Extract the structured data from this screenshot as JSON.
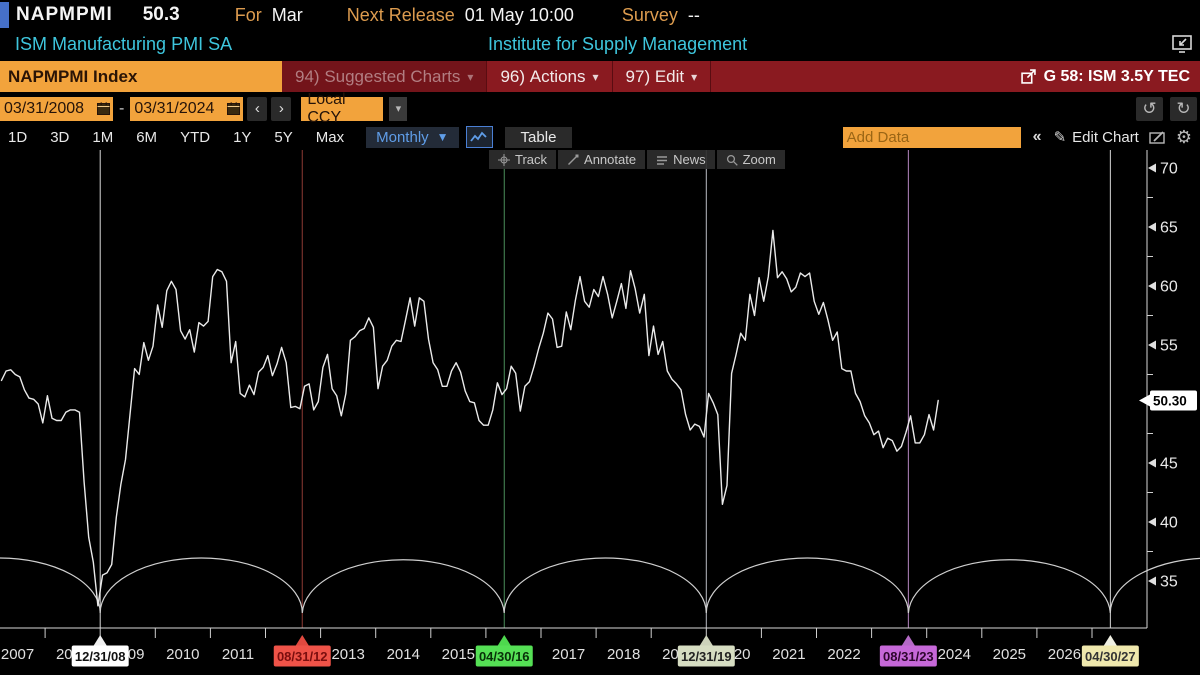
{
  "header": {
    "ticker": "NAPMPMI",
    "value": "50.3",
    "for_label": "For",
    "for_value": "Mar",
    "next_release_label": "Next Release",
    "next_release_value": "01 May 10:00",
    "survey_label": "Survey",
    "survey_value": "--",
    "security_name": "ISM Manufacturing PMI SA",
    "source": "Institute for Supply Management"
  },
  "menubar": {
    "security": "NAPMPMI Index",
    "suggested_num": "94)",
    "suggested_label": "Suggested Charts",
    "actions_num": "96)",
    "actions_label": "Actions",
    "edit_num": "97)",
    "edit_label": "Edit",
    "view_tag": "G 58: ISM 3.5Y TEC"
  },
  "daterange": {
    "start": "03/31/2008",
    "end": "03/31/2024",
    "currency": "Local CCY"
  },
  "toolbar": {
    "periods": [
      "1D",
      "3D",
      "1M",
      "6M",
      "YTD",
      "1Y",
      "5Y",
      "Max"
    ],
    "frequency": "Monthly",
    "table_label": "Table",
    "add_data_placeholder": "Add Data",
    "edit_chart_label": "Edit Chart"
  },
  "icons": {
    "caret_down": "▾",
    "caret_solid": "▼",
    "chevron_left": "‹",
    "chevron_right": "›",
    "double_chevron_left": "«",
    "undo": "↺",
    "redo": "↻",
    "pencil": "✎",
    "gear": "⚙",
    "dash": "-"
  },
  "chart_toolbar": [
    "Track",
    "Annotate",
    "News",
    "Zoom"
  ],
  "chart_data": {
    "type": "line",
    "series_name": "NAPMPMI Index",
    "title": "ISM Manufacturing PMI SA",
    "frequency": "monthly",
    "start": "2007-03",
    "end": "2024-03",
    "start_year_frac": 2007.2083,
    "last_price_label": "50.30",
    "last_value": 50.3,
    "yticks": [
      35,
      40,
      45,
      50,
      55,
      60,
      65,
      70
    ],
    "ylim_visible": [
      33,
      71
    ],
    "grid": false,
    "line_color": "#eaeaea",
    "arc_color": "#cfcfcf",
    "x_year_labels": [
      2007,
      2008,
      2009,
      2010,
      2011,
      2012,
      2013,
      2014,
      2015,
      2016,
      2017,
      2018,
      2019,
      2020,
      2021,
      2022,
      2023,
      2024,
      2025,
      2026
    ],
    "cycle_events": [
      {
        "label": "12/31/08",
        "t": 2009.0,
        "badge_bg": "#ffffff",
        "badge_text": "#111111",
        "line": "#d9d9d9",
        "tri": "#f0f0f0"
      },
      {
        "label": "08/31/12",
        "t": 2012.667,
        "badge_bg": "#ef5348",
        "badge_text": "#7a0e0e",
        "line": "#8e3a34",
        "tri": "#e0493f"
      },
      {
        "label": "04/30/16",
        "t": 2016.333,
        "badge_bg": "#55e055",
        "badge_text": "#083008",
        "line": "#4a8f5a",
        "tri": "#4ed84e"
      },
      {
        "label": "12/31/19",
        "t": 2020.0,
        "badge_bg": "#d6ddc2",
        "badge_text": "#222222",
        "line": "#b9bcc4",
        "tri": "#ccd2ba"
      },
      {
        "label": "08/31/23",
        "t": 2023.667,
        "badge_bg": "#c668d8",
        "badge_text": "#2e062e",
        "line": "#b888c4",
        "tri": "#b469c6"
      },
      {
        "label": "04/30/27",
        "t": 2027.333,
        "badge_bg": "#efe8ad",
        "badge_text": "#333333",
        "line": "#d9d9d9",
        "tri": "#efefe2"
      }
    ],
    "values_by_year": {
      "2007": [
        52.0,
        52.8,
        52.9,
        52.5,
        52.3,
        51.2,
        50.5,
        50.4,
        50.0,
        48.4
      ],
      "2008": [
        50.7,
        48.8,
        48.6,
        48.6,
        49.3,
        49.5,
        49.5,
        49.3,
        43.4,
        38.7,
        36.6,
        32.9
      ],
      "2009": [
        35.5,
        35.7,
        36.4,
        40.4,
        43.2,
        45.3,
        49.1,
        53.0,
        52.5,
        55.2,
        53.7,
        54.9
      ],
      "2010": [
        58.4,
        56.5,
        59.6,
        60.4,
        59.7,
        56.2,
        55.5,
        56.3,
        54.4,
        56.9,
        56.6,
        57.0
      ],
      "2011": [
        60.8,
        61.4,
        61.2,
        60.4,
        53.5,
        55.3,
        50.9,
        50.6,
        51.6,
        50.8,
        52.7,
        53.1
      ],
      "2012": [
        54.1,
        52.4,
        53.4,
        54.8,
        53.5,
        49.7,
        49.8,
        49.6,
        51.5,
        51.7,
        49.5,
        50.2
      ],
      "2013": [
        53.1,
        54.2,
        51.3,
        50.7,
        49.0,
        50.9,
        55.4,
        55.7,
        56.2,
        56.4,
        57.3,
        56.5
      ],
      "2014": [
        51.3,
        53.2,
        53.7,
        54.9,
        55.4,
        55.3,
        57.1,
        59.0,
        56.6,
        59.0,
        58.7,
        55.5
      ],
      "2015": [
        53.5,
        52.9,
        51.5,
        51.5,
        52.8,
        53.5,
        52.7,
        51.1,
        50.2,
        50.1,
        48.6,
        48.2
      ],
      "2016": [
        48.2,
        49.5,
        51.8,
        50.8,
        51.3,
        53.2,
        52.6,
        49.4,
        51.5,
        51.9,
        53.2,
        54.7
      ],
      "2017": [
        56.0,
        57.7,
        57.2,
        54.8,
        54.9,
        57.8,
        56.3,
        58.8,
        60.8,
        58.7,
        58.2,
        59.7
      ],
      "2018": [
        59.1,
        60.8,
        59.3,
        57.3,
        58.7,
        60.2,
        58.1,
        61.3,
        59.8,
        57.7,
        59.3,
        54.1
      ],
      "2019": [
        56.6,
        54.2,
        55.3,
        52.8,
        52.1,
        51.7,
        51.2,
        49.1,
        47.8,
        48.3,
        48.1,
        47.2
      ],
      "2020": [
        50.9,
        50.1,
        49.1,
        41.5,
        43.1,
        52.6,
        54.2,
        56.0,
        55.4,
        59.3,
        57.5,
        60.7
      ],
      "2021": [
        58.7,
        60.8,
        64.7,
        60.7,
        61.2,
        60.6,
        59.5,
        59.9,
        61.1,
        60.8,
        61.1,
        58.7
      ],
      "2022": [
        57.6,
        58.6,
        57.1,
        55.4,
        56.1,
        53.0,
        52.8,
        52.8,
        50.9,
        50.2,
        49.0,
        48.4
      ],
      "2023": [
        47.4,
        47.7,
        46.3,
        47.1,
        46.9,
        46.0,
        46.4,
        47.6,
        49.0,
        46.7,
        46.7,
        47.4
      ],
      "2024": [
        49.1,
        47.8,
        50.3
      ]
    }
  }
}
